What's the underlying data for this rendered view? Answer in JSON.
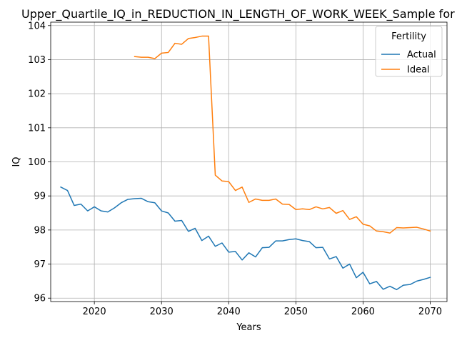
{
  "chart_data": {
    "type": "line",
    "title": "Upper_Quartile_IQ_in_REDUCTION_IN_LENGTH_OF_WORK_WEEK_Sample for Bla",
    "xlabel": "Years",
    "ylabel": "IQ",
    "xlim": [
      2013.5,
      2072.5
    ],
    "ylim": [
      95.9,
      104.1
    ],
    "xticks": [
      2020,
      2030,
      2040,
      2050,
      2060,
      2070
    ],
    "yticks": [
      96,
      97,
      98,
      99,
      100,
      101,
      102,
      103,
      104
    ],
    "grid": true,
    "legend": {
      "title": "Fertility",
      "position": "top-right"
    },
    "series": [
      {
        "name": "Actual",
        "color": "#1f77b4",
        "x": [
          2015,
          2016,
          2017,
          2018,
          2019,
          2020,
          2021,
          2022,
          2023,
          2024,
          2025,
          2026,
          2027,
          2028,
          2029,
          2030,
          2031,
          2032,
          2033,
          2034,
          2035,
          2036,
          2037,
          2038,
          2039,
          2040,
          2041,
          2042,
          2043,
          2044,
          2045,
          2046,
          2047,
          2048,
          2049,
          2050,
          2051,
          2052,
          2053,
          2054,
          2055,
          2056,
          2057,
          2058,
          2059,
          2060,
          2061,
          2062,
          2063,
          2064,
          2065,
          2066,
          2067,
          2068,
          2069,
          2070
        ],
        "y": [
          99.26,
          99.16,
          98.72,
          98.76,
          98.56,
          98.68,
          98.56,
          98.53,
          98.65,
          98.8,
          98.9,
          98.92,
          98.93,
          98.83,
          98.8,
          98.56,
          98.5,
          98.26,
          98.28,
          97.96,
          98.05,
          97.69,
          97.82,
          97.52,
          97.62,
          97.35,
          97.37,
          97.12,
          97.33,
          97.21,
          97.48,
          97.49,
          97.68,
          97.68,
          97.72,
          97.74,
          97.69,
          97.66,
          97.48,
          97.49,
          97.15,
          97.22,
          96.88,
          97.0,
          96.6,
          96.76,
          96.42,
          96.49,
          96.26,
          96.35,
          96.25,
          96.38,
          96.4,
          96.5,
          96.55,
          96.61
        ]
      },
      {
        "name": "Ideal",
        "color": "#ff7f0e",
        "x": [
          2026,
          2027,
          2028,
          2029,
          2030,
          2031,
          2032,
          2033,
          2034,
          2035,
          2036,
          2037,
          2038,
          2039,
          2040,
          2041,
          2042,
          2043,
          2044,
          2045,
          2046,
          2047,
          2048,
          2049,
          2050,
          2051,
          2052,
          2053,
          2054,
          2055,
          2056,
          2057,
          2058,
          2059,
          2060,
          2061,
          2062,
          2063,
          2064,
          2065,
          2066,
          2067,
          2068,
          2069,
          2070
        ],
        "y": [
          103.09,
          103.07,
          103.07,
          103.03,
          103.19,
          103.21,
          103.48,
          103.45,
          103.62,
          103.65,
          103.69,
          103.69,
          99.61,
          99.44,
          99.42,
          99.16,
          99.26,
          98.81,
          98.91,
          98.87,
          98.87,
          98.91,
          98.76,
          98.75,
          98.6,
          98.62,
          98.6,
          98.68,
          98.62,
          98.66,
          98.49,
          98.57,
          98.31,
          98.39,
          98.17,
          98.12,
          97.97,
          97.95,
          97.91,
          98.07,
          98.06,
          98.07,
          98.08,
          98.03,
          97.97
        ]
      }
    ]
  }
}
